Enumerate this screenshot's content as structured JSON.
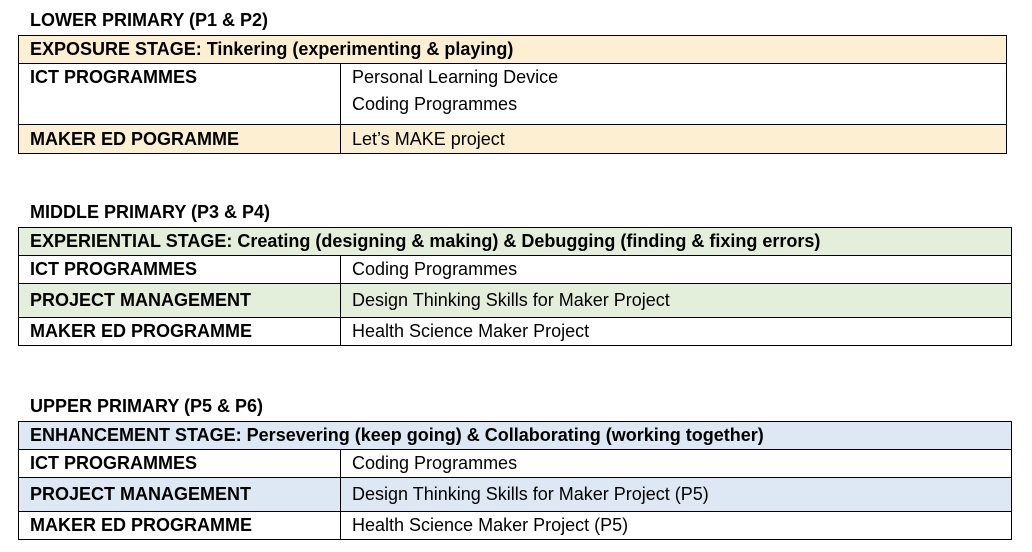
{
  "sections": [
    {
      "title": "LOWER PRIMARY (P1 & P2)",
      "stage": "EXPOSURE STAGE: Tinkering (experimenting & playing)",
      "color": "#fdefd2",
      "rows": [
        {
          "label": "ICT PROGRAMMES",
          "values": [
            "Personal Learning Device",
            "Coding Programmes"
          ],
          "shaded": false
        },
        {
          "label": "MAKER ED POGRAMME",
          "values": [
            "Let’s MAKE project"
          ],
          "shaded": true
        }
      ]
    },
    {
      "title": "MIDDLE PRIMARY (P3 & P4)",
      "stage": "EXPERIENTIAL STAGE: Creating (designing & making) & Debugging (finding & fixing errors)",
      "color": "#e4efdb",
      "rows": [
        {
          "label": "ICT PROGRAMMES",
          "values": [
            "Coding Programmes"
          ],
          "shaded": false
        },
        {
          "label": "PROJECT MANAGEMENT",
          "values": [
            "Design Thinking Skills for Maker Project"
          ],
          "shaded": true
        },
        {
          "label": "MAKER ED PROGRAMME",
          "values": [
            "Health Science Maker Project"
          ],
          "shaded": false
        }
      ]
    },
    {
      "title": "UPPER PRIMARY (P5 & P6)",
      "stage": "ENHANCEMENT STAGE: Persevering (keep going) & Collaborating (working together)",
      "color": "#dde8f4",
      "rows": [
        {
          "label": "ICT PROGRAMMES",
          "values": [
            "Coding Programmes"
          ],
          "shaded": false
        },
        {
          "label": "PROJECT MANAGEMENT",
          "values": [
            "Design Thinking Skills for Maker Project (P5)"
          ],
          "shaded": true
        },
        {
          "label": "MAKER ED PROGRAMME",
          "values": [
            "Health Science Maker Project (P5)"
          ],
          "shaded": false
        }
      ]
    }
  ]
}
